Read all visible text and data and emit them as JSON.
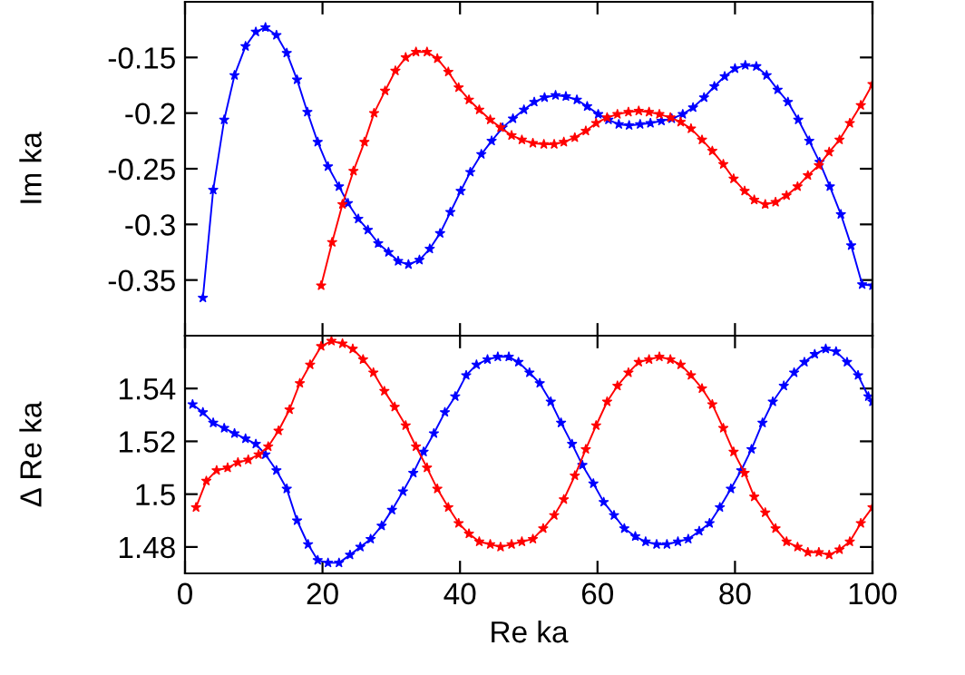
{
  "chart_data": [
    {
      "type": "line",
      "ylabel": "Im ka",
      "xlim": [
        0,
        100
      ],
      "xticks": [
        0,
        20,
        40,
        60,
        80,
        100
      ],
      "ylim": [
        -0.4,
        -0.1
      ],
      "yticks": [
        -0.35,
        -0.3,
        -0.25,
        -0.2,
        -0.15
      ],
      "tick_labels": "y",
      "marker": "star",
      "line_style": "solid",
      "grid": false,
      "series": [
        {
          "color": "#0000ff",
          "x": [
            2.6,
            4.1,
            5.7,
            7.2,
            8.8,
            10.3,
            11.7,
            13.3,
            14.8,
            16.3,
            17.8,
            19.3,
            20.8,
            22.4,
            23.7,
            25.2,
            26.6,
            28.1,
            29.6,
            31.0,
            32.5,
            34.1,
            35.6,
            37.1,
            38.6,
            40.1,
            41.5,
            43.1,
            44.6,
            46.2,
            47.7,
            49.3,
            50.8,
            52.3,
            53.9,
            55.4,
            57.0,
            58.5,
            60.1,
            61.6,
            63.1,
            64.6,
            66.2,
            67.7,
            69.3,
            70.8,
            72.4,
            73.9,
            75.5,
            77.0,
            78.5,
            80.0,
            81.5,
            83.1,
            84.6,
            86.2,
            87.7,
            89.2,
            90.8,
            92.3,
            93.8,
            95.4,
            96.9,
            98.5,
            100
          ],
          "values": [
            -0.366,
            -0.269,
            -0.206,
            -0.166,
            -0.14,
            -0.127,
            -0.123,
            -0.13,
            -0.146,
            -0.17,
            -0.199,
            -0.226,
            -0.248,
            -0.266,
            -0.281,
            -0.295,
            -0.305,
            -0.317,
            -0.325,
            -0.333,
            -0.336,
            -0.332,
            -0.322,
            -0.308,
            -0.289,
            -0.27,
            -0.253,
            -0.237,
            -0.225,
            -0.213,
            -0.205,
            -0.197,
            -0.19,
            -0.186,
            -0.184,
            -0.185,
            -0.188,
            -0.194,
            -0.201,
            -0.206,
            -0.21,
            -0.211,
            -0.21,
            -0.209,
            -0.207,
            -0.205,
            -0.201,
            -0.195,
            -0.186,
            -0.176,
            -0.167,
            -0.16,
            -0.157,
            -0.158,
            -0.166,
            -0.179,
            -0.19,
            -0.206,
            -0.225,
            -0.244,
            -0.266,
            -0.291,
            -0.319,
            -0.354,
            -0.355
          ]
        },
        {
          "color": "#ff0000",
          "x": [
            19.8,
            21.4,
            22.9,
            24.5,
            26.1,
            27.5,
            29.1,
            30.6,
            32.1,
            33.6,
            35.2,
            36.7,
            38.3,
            39.8,
            41.3,
            42.8,
            44.4,
            45.9,
            47.5,
            49.0,
            50.6,
            52.2,
            53.7,
            55.1,
            56.7,
            58.3,
            59.8,
            61.4,
            62.9,
            64.5,
            66.0,
            67.5,
            69.0,
            70.6,
            72.1,
            73.6,
            75.2,
            76.7,
            78.3,
            79.8,
            81.4,
            82.8,
            84.4,
            85.9,
            87.5,
            89.1,
            90.6,
            92.2,
            93.7,
            95.2,
            96.7,
            98.3,
            100
          ],
          "values": [
            -0.355,
            -0.316,
            -0.282,
            -0.252,
            -0.226,
            -0.2,
            -0.18,
            -0.162,
            -0.15,
            -0.145,
            -0.145,
            -0.151,
            -0.163,
            -0.177,
            -0.188,
            -0.197,
            -0.206,
            -0.213,
            -0.22,
            -0.224,
            -0.227,
            -0.228,
            -0.228,
            -0.226,
            -0.222,
            -0.216,
            -0.209,
            -0.204,
            -0.201,
            -0.199,
            -0.198,
            -0.199,
            -0.201,
            -0.204,
            -0.208,
            -0.214,
            -0.224,
            -0.234,
            -0.246,
            -0.259,
            -0.27,
            -0.278,
            -0.282,
            -0.28,
            -0.274,
            -0.266,
            -0.256,
            -0.247,
            -0.235,
            -0.224,
            -0.209,
            -0.193,
            -0.174
          ]
        }
      ]
    },
    {
      "type": "line",
      "xlabel": "Re ka",
      "ylabel": "Δ Re ka",
      "xlim": [
        0,
        100
      ],
      "xticks": [
        0,
        20,
        40,
        60,
        80,
        100
      ],
      "ylim": [
        1.47,
        1.56
      ],
      "yticks": [
        1.48,
        1.5,
        1.52,
        1.54
      ],
      "marker": "star",
      "line_style": "solid",
      "grid": false,
      "series": [
        {
          "color": "#0000ff",
          "x": [
            1.1,
            2.6,
            4.1,
            5.7,
            7.2,
            8.8,
            10.3,
            11.7,
            13.3,
            14.8,
            16.3,
            17.9,
            19.3,
            20.8,
            22.4,
            24.0,
            25.5,
            27.0,
            28.6,
            30.1,
            31.7,
            33.2,
            34.7,
            36.2,
            37.8,
            39.3,
            40.9,
            42.4,
            44.0,
            45.5,
            47.1,
            48.5,
            50.1,
            51.6,
            53.2,
            54.7,
            56.3,
            57.8,
            59.4,
            60.9,
            62.4,
            63.9,
            65.5,
            67.0,
            68.6,
            70.1,
            71.7,
            73.2,
            74.8,
            76.3,
            77.8,
            79.4,
            80.9,
            82.4,
            84.0,
            85.5,
            87.1,
            88.6,
            90.1,
            91.6,
            93.2,
            94.7,
            96.3,
            97.9,
            99.4,
            100
          ],
          "values": [
            1.534,
            1.531,
            1.527,
            1.525,
            1.523,
            1.521,
            1.519,
            1.515,
            1.509,
            1.502,
            1.49,
            1.481,
            1.475,
            1.474,
            1.474,
            1.477,
            1.48,
            1.483,
            1.488,
            1.494,
            1.501,
            1.508,
            1.516,
            1.523,
            1.531,
            1.537,
            1.545,
            1.549,
            1.551,
            1.552,
            1.552,
            1.55,
            1.546,
            1.542,
            1.535,
            1.527,
            1.519,
            1.511,
            1.504,
            1.497,
            1.492,
            1.487,
            1.484,
            1.482,
            1.481,
            1.481,
            1.482,
            1.483,
            1.486,
            1.489,
            1.495,
            1.502,
            1.509,
            1.517,
            1.527,
            1.535,
            1.541,
            1.546,
            1.55,
            1.553,
            1.555,
            1.554,
            1.55,
            1.545,
            1.537,
            1.535
          ]
        },
        {
          "color": "#ff0000",
          "x": [
            1.6,
            3.1,
            4.6,
            6.2,
            7.7,
            9.2,
            10.7,
            12.1,
            13.6,
            15.2,
            16.7,
            18.2,
            19.8,
            21.3,
            22.9,
            24.4,
            25.9,
            27.4,
            29.0,
            30.5,
            32.1,
            33.6,
            35.2,
            36.7,
            38.3,
            39.8,
            41.3,
            42.8,
            44.4,
            45.9,
            47.5,
            49.0,
            50.6,
            52.1,
            53.7,
            55.1,
            56.7,
            58.3,
            59.8,
            61.4,
            62.9,
            64.5,
            66.0,
            67.5,
            69.0,
            70.6,
            72.1,
            73.6,
            75.2,
            76.7,
            78.3,
            79.8,
            81.4,
            82.8,
            84.4,
            85.9,
            87.5,
            89.1,
            90.6,
            92.2,
            93.7,
            95.2,
            96.7,
            98.3,
            100
          ],
          "values": [
            1.495,
            1.505,
            1.509,
            1.51,
            1.512,
            1.513,
            1.515,
            1.518,
            1.524,
            1.532,
            1.542,
            1.549,
            1.556,
            1.558,
            1.557,
            1.555,
            1.551,
            1.546,
            1.539,
            1.533,
            1.526,
            1.518,
            1.51,
            1.502,
            1.495,
            1.489,
            1.485,
            1.482,
            1.481,
            1.48,
            1.481,
            1.482,
            1.483,
            1.487,
            1.492,
            1.498,
            1.507,
            1.517,
            1.526,
            1.535,
            1.541,
            1.546,
            1.55,
            1.551,
            1.552,
            1.551,
            1.549,
            1.545,
            1.54,
            1.534,
            1.525,
            1.516,
            1.508,
            1.499,
            1.493,
            1.487,
            1.482,
            1.48,
            1.478,
            1.478,
            1.477,
            1.479,
            1.482,
            1.489,
            1.495
          ]
        }
      ]
    }
  ]
}
